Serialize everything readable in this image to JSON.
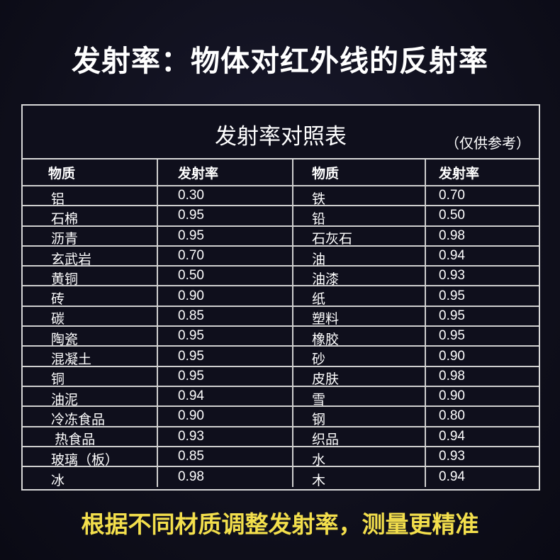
{
  "headline": "发射率：物体对红外线的反射率",
  "table": {
    "title": "发射率对照表",
    "note": "（仅供参考）",
    "headers": [
      "物质",
      "发射率",
      "物质",
      "发射率"
    ],
    "rows": [
      [
        "铝",
        "0.30",
        "铁",
        "0.70"
      ],
      [
        "石棉",
        "0.95",
        "铅",
        "0.50"
      ],
      [
        "沥青",
        "0.95",
        "石灰石",
        "0.98"
      ],
      [
        "玄武岩",
        "0.70",
        "油",
        "0.94"
      ],
      [
        "黄铜",
        "0.50",
        "油漆",
        "0.93"
      ],
      [
        "砖",
        "0.90",
        "纸",
        "0.95"
      ],
      [
        "碳",
        "0.85",
        "塑料",
        "0.95"
      ],
      [
        "陶瓷",
        "0.95",
        "橡胶",
        "0.95"
      ],
      [
        "混凝土",
        "0.95",
        "砂",
        "0.90"
      ],
      [
        "铜",
        "0.95",
        "皮肤",
        "0.98"
      ],
      [
        "油泥",
        "0.94",
        "雪",
        "0.90"
      ],
      [
        "冷冻食品",
        "0.90",
        "钢",
        "0.80"
      ],
      [
        " 热食品",
        "0.93",
        "织品",
        "0.94"
      ],
      [
        "玻璃（板）",
        "0.85",
        "水",
        "0.93"
      ],
      [
        "冰",
        "0.98",
        "木",
        "0.94"
      ]
    ]
  },
  "footer": "根据不同材质调整发射率，测量更精准",
  "colors": {
    "background": "#0f0f1c",
    "footer_text": "#f3df4c",
    "grid_lines": "#d8d8d8"
  }
}
